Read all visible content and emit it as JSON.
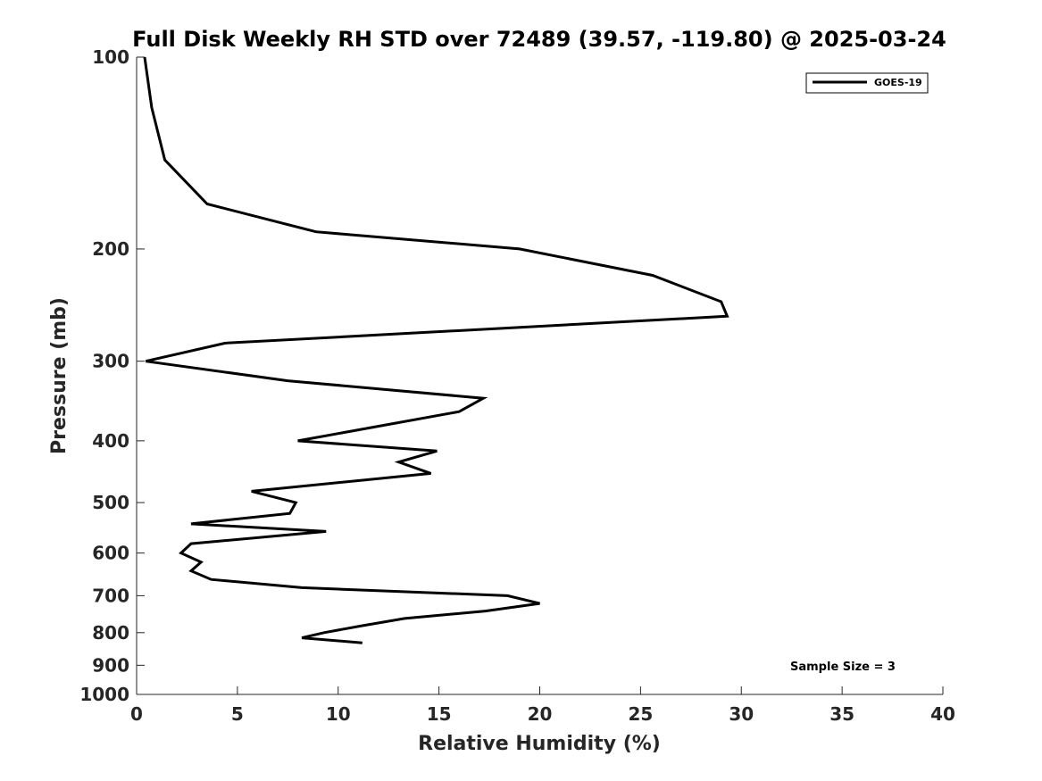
{
  "chart_data": {
    "type": "line",
    "title": "Full Disk Weekly RH STD over 72489 (39.57, -119.80) @ 2025-03-24",
    "xlabel": "Relative Humidity (%)",
    "ylabel": "Pressure (mb)",
    "xlim": [
      0,
      40
    ],
    "ylim": [
      1000,
      100
    ],
    "yscale": "log",
    "xticks": [
      0,
      5,
      10,
      15,
      20,
      25,
      30,
      35,
      40
    ],
    "yticks": [
      100,
      200,
      300,
      400,
      500,
      600,
      700,
      800,
      900,
      1000
    ],
    "grid": false,
    "legend": {
      "position": "top-right",
      "entries": [
        "GOES-19"
      ]
    },
    "annotation": "Sample Size = 3",
    "series": [
      {
        "name": "GOES-19",
        "color": "#000000",
        "points": [
          {
            "x": 0.4,
            "y": 100
          },
          {
            "x": 0.75,
            "y": 120
          },
          {
            "x": 1.4,
            "y": 145
          },
          {
            "x": 3.5,
            "y": 170
          },
          {
            "x": 8.9,
            "y": 188
          },
          {
            "x": 19.0,
            "y": 200
          },
          {
            "x": 25.6,
            "y": 220
          },
          {
            "x": 29.0,
            "y": 242
          },
          {
            "x": 29.3,
            "y": 255
          },
          {
            "x": 4.4,
            "y": 281
          },
          {
            "x": 0.45,
            "y": 300
          },
          {
            "x": 7.5,
            "y": 322
          },
          {
            "x": 17.2,
            "y": 343
          },
          {
            "x": 16.0,
            "y": 360
          },
          {
            "x": 8.0,
            "y": 400
          },
          {
            "x": 14.9,
            "y": 415
          },
          {
            "x": 13.0,
            "y": 432
          },
          {
            "x": 14.6,
            "y": 450
          },
          {
            "x": 5.7,
            "y": 480
          },
          {
            "x": 7.9,
            "y": 500
          },
          {
            "x": 7.6,
            "y": 520
          },
          {
            "x": 2.7,
            "y": 540
          },
          {
            "x": 9.4,
            "y": 555
          },
          {
            "x": 2.7,
            "y": 580
          },
          {
            "x": 2.2,
            "y": 600
          },
          {
            "x": 3.2,
            "y": 620
          },
          {
            "x": 2.7,
            "y": 640
          },
          {
            "x": 3.7,
            "y": 660
          },
          {
            "x": 8.2,
            "y": 680
          },
          {
            "x": 18.4,
            "y": 700
          },
          {
            "x": 20.0,
            "y": 720
          },
          {
            "x": 17.3,
            "y": 740
          },
          {
            "x": 13.3,
            "y": 760
          },
          {
            "x": 11.2,
            "y": 780
          },
          {
            "x": 9.3,
            "y": 800
          },
          {
            "x": 8.2,
            "y": 815
          },
          {
            "x": 11.2,
            "y": 830
          }
        ]
      }
    ]
  }
}
